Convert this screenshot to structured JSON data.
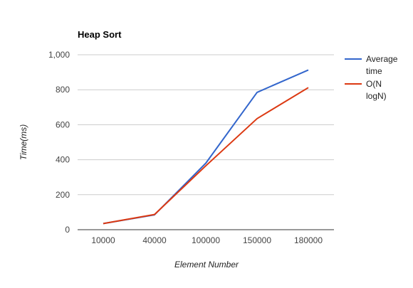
{
  "chart_data": {
    "type": "line",
    "title": "Heap Sort",
    "xlabel": "Element Number",
    "ylabel": "Time(ms)",
    "categories": [
      "10000",
      "40000",
      "100000",
      "150000",
      "180000"
    ],
    "yticks": [
      "0",
      "200",
      "400",
      "600",
      "800",
      "1,000"
    ],
    "ylim": [
      0,
      1000
    ],
    "grid": true,
    "legend_position": "right",
    "series": [
      {
        "name": "Average time",
        "legend_lines": [
          "Average",
          "time"
        ],
        "color": "#3366cc",
        "values": [
          35,
          85,
          380,
          785,
          913
        ]
      },
      {
        "name": "O(N logN)",
        "legend_lines": [
          "O(N",
          "logN)"
        ],
        "color": "#dc3912",
        "values": [
          35,
          87,
          365,
          635,
          812
        ]
      }
    ]
  }
}
